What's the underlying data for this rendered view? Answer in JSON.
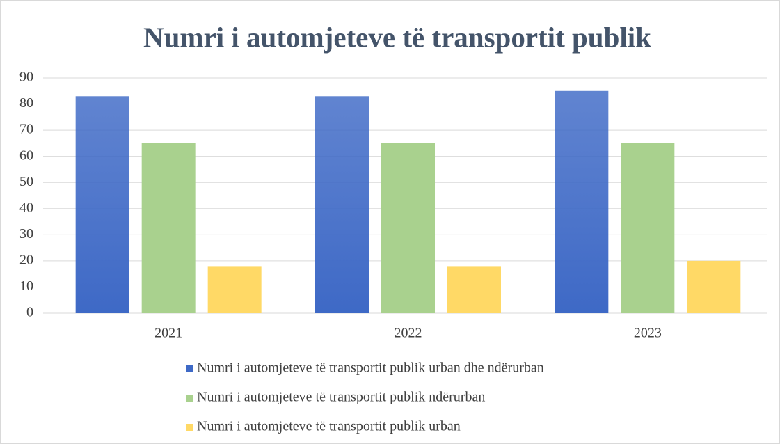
{
  "chart_data": {
    "type": "bar",
    "title": "Numri i automjeteve të transportit publik",
    "categories": [
      "2021",
      "2022",
      "2023"
    ],
    "series": [
      {
        "name": "Numri i automjeteve të transportit publik urban dhe ndërurban",
        "color": "#3e69c6",
        "values": [
          83,
          83,
          85
        ]
      },
      {
        "name": "Numri i automjeteve të transportit publik ndërurban",
        "color": "#a9d18e",
        "values": [
          65,
          65,
          65
        ]
      },
      {
        "name": "Numri i automjeteve të transportit publik urban",
        "color": "#ffd966",
        "values": [
          18,
          18,
          20
        ]
      }
    ],
    "ylim": [
      0,
      90
    ],
    "yticks": [
      0,
      10,
      20,
      30,
      40,
      50,
      60,
      70,
      80,
      90
    ],
    "grid": true,
    "legend": "bottom"
  }
}
